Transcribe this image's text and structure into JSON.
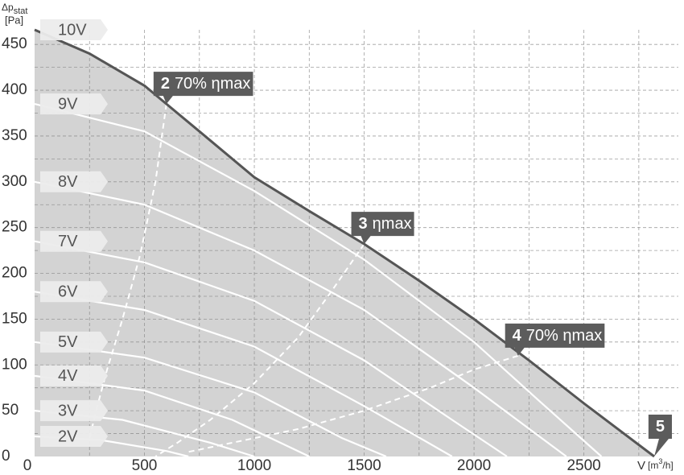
{
  "chart_data": {
    "type": "line",
    "y_label": "Δp",
    "y_label_sub": "stat",
    "y_unit": "[Pa]",
    "x_label": "V",
    "x_unit_pre": "[m",
    "x_unit_sup": "3",
    "x_unit_post": "/h]",
    "xlim": [
      0,
      2930
    ],
    "ylim": [
      0,
      466
    ],
    "xticks": [
      0,
      500,
      1000,
      1500,
      2000,
      2500
    ],
    "yticks": [
      0,
      50,
      100,
      150,
      200,
      250,
      300,
      350,
      400,
      450
    ],
    "grid": true,
    "envelope_color": "#d3d3d3",
    "series": [
      {
        "name": "10V",
        "color": "#555555",
        "x": [
          0,
          250,
          500,
          750,
          1000,
          1250,
          1500,
          1750,
          2000,
          2250,
          2500,
          2820
        ],
        "values": [
          466,
          440,
          405,
          355,
          305,
          268,
          232,
          192,
          150,
          105,
          58,
          0
        ]
      },
      {
        "name": "9V",
        "color": "#ffffff",
        "x": [
          0,
          500,
          1000,
          1500,
          2000,
          2300,
          2580
        ],
        "values": [
          385,
          355,
          290,
          215,
          125,
          60,
          0
        ]
      },
      {
        "name": "8V",
        "color": "#ffffff",
        "x": [
          0,
          500,
          1000,
          1500,
          2000,
          2420
        ],
        "values": [
          300,
          275,
          225,
          160,
          75,
          0
        ]
      },
      {
        "name": "7V",
        "color": "#ffffff",
        "x": [
          0,
          500,
          1000,
          1500,
          1900,
          2150
        ],
        "values": [
          235,
          212,
          170,
          105,
          40,
          0
        ]
      },
      {
        "name": "6V",
        "color": "#ffffff",
        "x": [
          0,
          500,
          1000,
          1500,
          1900
        ],
        "values": [
          180,
          160,
          120,
          55,
          0
        ]
      },
      {
        "name": "5V",
        "color": "#ffffff",
        "x": [
          0,
          500,
          1000,
          1400,
          1600
        ],
        "values": [
          125,
          108,
          70,
          20,
          0
        ]
      },
      {
        "name": "4V",
        "color": "#ffffff",
        "x": [
          0,
          500,
          900,
          1250
        ],
        "values": [
          88,
          72,
          40,
          0
        ]
      },
      {
        "name": "3V",
        "color": "#ffffff",
        "x": [
          0,
          400,
          800,
          1000
        ],
        "values": [
          50,
          40,
          15,
          0
        ]
      },
      {
        "name": "2V",
        "color": "#ffffff",
        "x": [
          0,
          300,
          600,
          700
        ],
        "values": [
          22,
          18,
          6,
          0
        ]
      }
    ],
    "efficiency_lines": [
      {
        "style": "dashed",
        "color": "#ffffff",
        "x": [
          600,
          550,
          480,
          400,
          330,
          280,
          250
        ],
        "values": [
          385,
          300,
          220,
          150,
          95,
          50,
          20
        ]
      },
      {
        "style": "dashed",
        "color": "#ffffff",
        "x": [
          1500,
          1350,
          1200,
          1000,
          800,
          650,
          550
        ],
        "values": [
          232,
          180,
          130,
          80,
          40,
          15,
          0
        ]
      },
      {
        "style": "dashed",
        "color": "#ffffff",
        "x": [
          2200,
          2000,
          1800,
          1500,
          1200,
          900,
          700
        ],
        "values": [
          110,
          95,
          75,
          50,
          30,
          15,
          5
        ]
      }
    ],
    "callouts": [
      {
        "number": "2",
        "text": "70% ηmax"
      },
      {
        "number": "3",
        "text": "ηmax"
      },
      {
        "number": "4",
        "text": "70% ηmax"
      },
      {
        "number": "5"
      }
    ]
  }
}
